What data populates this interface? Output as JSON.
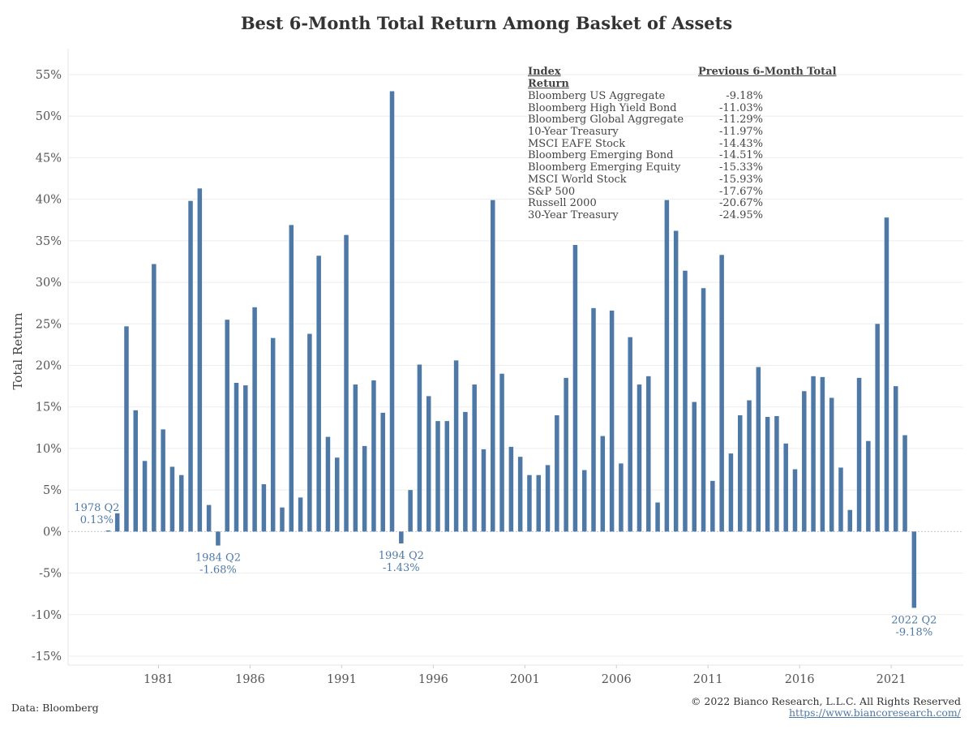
{
  "chart_data": {
    "type": "bar",
    "title": "Best 6-Month Total Return Among Basket of Assets",
    "ylabel": "Total Return",
    "xlabel": "",
    "ylim": [
      -15,
      55
    ],
    "y_ticks": [
      "55%",
      "50%",
      "45%",
      "40%",
      "35%",
      "30%",
      "25%",
      "20%",
      "15%",
      "10%",
      "5%",
      "0%",
      "-5%",
      "-10%",
      "-15%"
    ],
    "y_tick_values": [
      55,
      50,
      45,
      40,
      35,
      30,
      25,
      20,
      15,
      10,
      5,
      0,
      -5,
      -10,
      -15
    ],
    "x_ticks": [
      "1981",
      "1986",
      "1991",
      "1996",
      "2001",
      "2006",
      "2011",
      "2016",
      "2021"
    ],
    "x_tick_years": [
      1981,
      1986,
      1991,
      1996,
      2001,
      2006,
      2011,
      2016,
      2021
    ],
    "bar_color": "#4e79a7",
    "series": [
      {
        "name": "",
        "x": [
          1978.25,
          1978.75,
          1979.25,
          1979.75,
          1980.25,
          1980.75,
          1981.25,
          1981.75,
          1982.25,
          1982.75,
          1983.25,
          1983.75,
          1984.25,
          1984.75,
          1985.25,
          1985.75,
          1986.25,
          1986.75,
          1987.25,
          1987.75,
          1988.25,
          1988.75,
          1989.25,
          1989.75,
          1990.25,
          1990.75,
          1991.25,
          1991.75,
          1992.25,
          1992.75,
          1993.25,
          1993.75,
          1994.25,
          1994.75,
          1995.25,
          1995.75,
          1996.25,
          1996.75,
          1997.25,
          1997.75,
          1998.25,
          1998.75,
          1999.25,
          1999.75,
          2000.25,
          2000.75,
          2001.25,
          2001.75,
          2002.25,
          2002.75,
          2003.25,
          2003.75,
          2004.25,
          2004.75,
          2005.25,
          2005.75,
          2006.25,
          2006.75,
          2007.25,
          2007.75,
          2008.25,
          2008.75,
          2009.25,
          2009.75,
          2010.25,
          2010.75,
          2011.25,
          2011.75,
          2012.25,
          2012.75,
          2013.25,
          2013.75,
          2014.25,
          2014.75,
          2015.25,
          2015.75,
          2016.25,
          2016.75,
          2017.25,
          2017.75,
          2018.25,
          2018.75,
          2019.25,
          2019.75,
          2020.25,
          2020.75,
          2021.25,
          2021.75,
          2022.25
        ],
        "values": [
          0.13,
          2.2,
          24.7,
          14.6,
          8.5,
          32.2,
          12.3,
          7.8,
          6.8,
          39.8,
          41.3,
          3.2,
          -1.68,
          25.5,
          17.9,
          17.6,
          27.0,
          5.7,
          23.3,
          2.9,
          36.9,
          4.1,
          23.8,
          33.2,
          11.4,
          8.9,
          35.7,
          17.7,
          10.3,
          18.2,
          14.3,
          53.0,
          -1.43,
          5.0,
          20.1,
          16.3,
          13.3,
          13.3,
          20.6,
          14.4,
          17.7,
          9.9,
          39.9,
          19.0,
          10.2,
          9.0,
          6.8,
          6.8,
          8.0,
          14.0,
          18.5,
          34.5,
          7.4,
          26.9,
          11.5,
          26.6,
          8.2,
          23.4,
          17.7,
          18.7,
          3.5,
          39.9,
          36.2,
          31.4,
          15.6,
          29.3,
          6.1,
          33.3,
          9.4,
          14.0,
          15.8,
          19.8,
          13.8,
          13.9,
          10.6,
          7.5,
          16.9,
          18.7,
          18.6,
          16.1,
          7.7,
          2.6,
          18.5,
          10.9,
          25.0,
          37.8,
          17.5,
          11.6,
          -9.18
        ]
      }
    ],
    "annotations": [
      {
        "label": "1978 Q2",
        "value_label": "0.13%",
        "x": 1978.25,
        "y": 0.13
      },
      {
        "label": "1984 Q2",
        "value_label": "-1.68%",
        "x": 1984.25,
        "y": -1.68
      },
      {
        "label": "1994 Q2",
        "value_label": "-1.43%",
        "x": 1994.25,
        "y": -1.43
      },
      {
        "label": "2022 Q2",
        "value_label": "-9.18%",
        "x": 2022.25,
        "y": -9.18
      }
    ],
    "grid": true,
    "legend": "none"
  },
  "table": {
    "col1_header": "Index Return",
    "col2_header": "Previous 6-Month Total",
    "rows": [
      {
        "name": "Bloomberg US Aggregate",
        "value": "-9.18%"
      },
      {
        "name": "Bloomberg High Yield Bond",
        "value": "-11.03%"
      },
      {
        "name": "Bloomberg Global Aggregate",
        "value": "-11.29%"
      },
      {
        "name": "10-Year Treasury",
        "value": "-11.97%"
      },
      {
        "name": "MSCI EAFE Stock",
        "value": "-14.43%"
      },
      {
        "name": "Bloomberg Emerging Bond",
        "value": "-14.51%"
      },
      {
        "name": "Bloomberg Emerging Equity",
        "value": "-15.33%"
      },
      {
        "name": "MSCI World Stock",
        "value": "-15.93%"
      },
      {
        "name": "S&P 500",
        "value": "-17.67%"
      },
      {
        "name": "Russell 2000",
        "value": "-20.67%"
      },
      {
        "name": "30-Year Treasury",
        "value": "-24.95%"
      }
    ]
  },
  "footer": {
    "source": "Data: Bloomberg",
    "copyright": "© 2022 Bianco Research, L.L.C. All Rights Reserved",
    "url": "https://www.biancoresearch.com/"
  }
}
